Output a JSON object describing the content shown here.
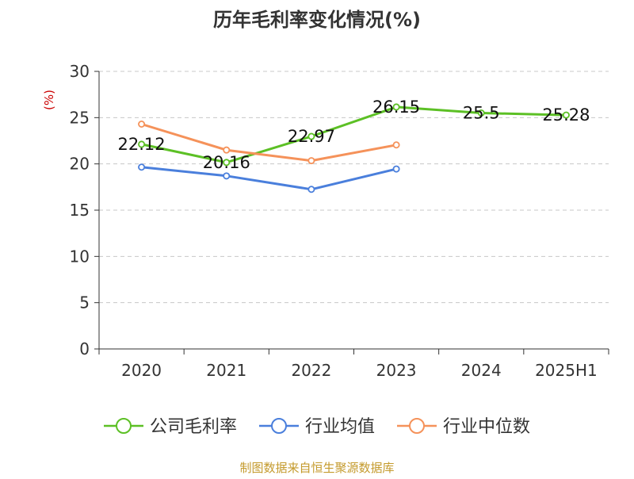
{
  "chart_data": {
    "type": "line",
    "title": "历年毛利率变化情况(%)",
    "ylabel": "(%)",
    "categories": [
      "2020",
      "2021",
      "2022",
      "2023",
      "2024",
      "2025H1"
    ],
    "ylim": [
      0,
      30
    ],
    "yticks": [
      0,
      5,
      10,
      15,
      20,
      25,
      30
    ],
    "grid": true,
    "legend_position": "bottom",
    "series": [
      {
        "name": "公司毛利率",
        "color": "#5cc025",
        "values": [
          22.12,
          20.16,
          22.97,
          26.15,
          25.5,
          25.28
        ],
        "data_labels": [
          "22.12",
          "20.16",
          "22.97",
          "26.15",
          "25.5",
          "25.28"
        ]
      },
      {
        "name": "行业均值",
        "color": "#4a7fdc",
        "values": [
          19.65,
          18.7,
          17.25,
          19.45,
          null,
          null
        ]
      },
      {
        "name": "行业中位数",
        "color": "#f5925a",
        "values": [
          24.3,
          21.5,
          20.35,
          22.05,
          null,
          null
        ]
      }
    ],
    "source": "制图数据来自恒生聚源数据库"
  }
}
